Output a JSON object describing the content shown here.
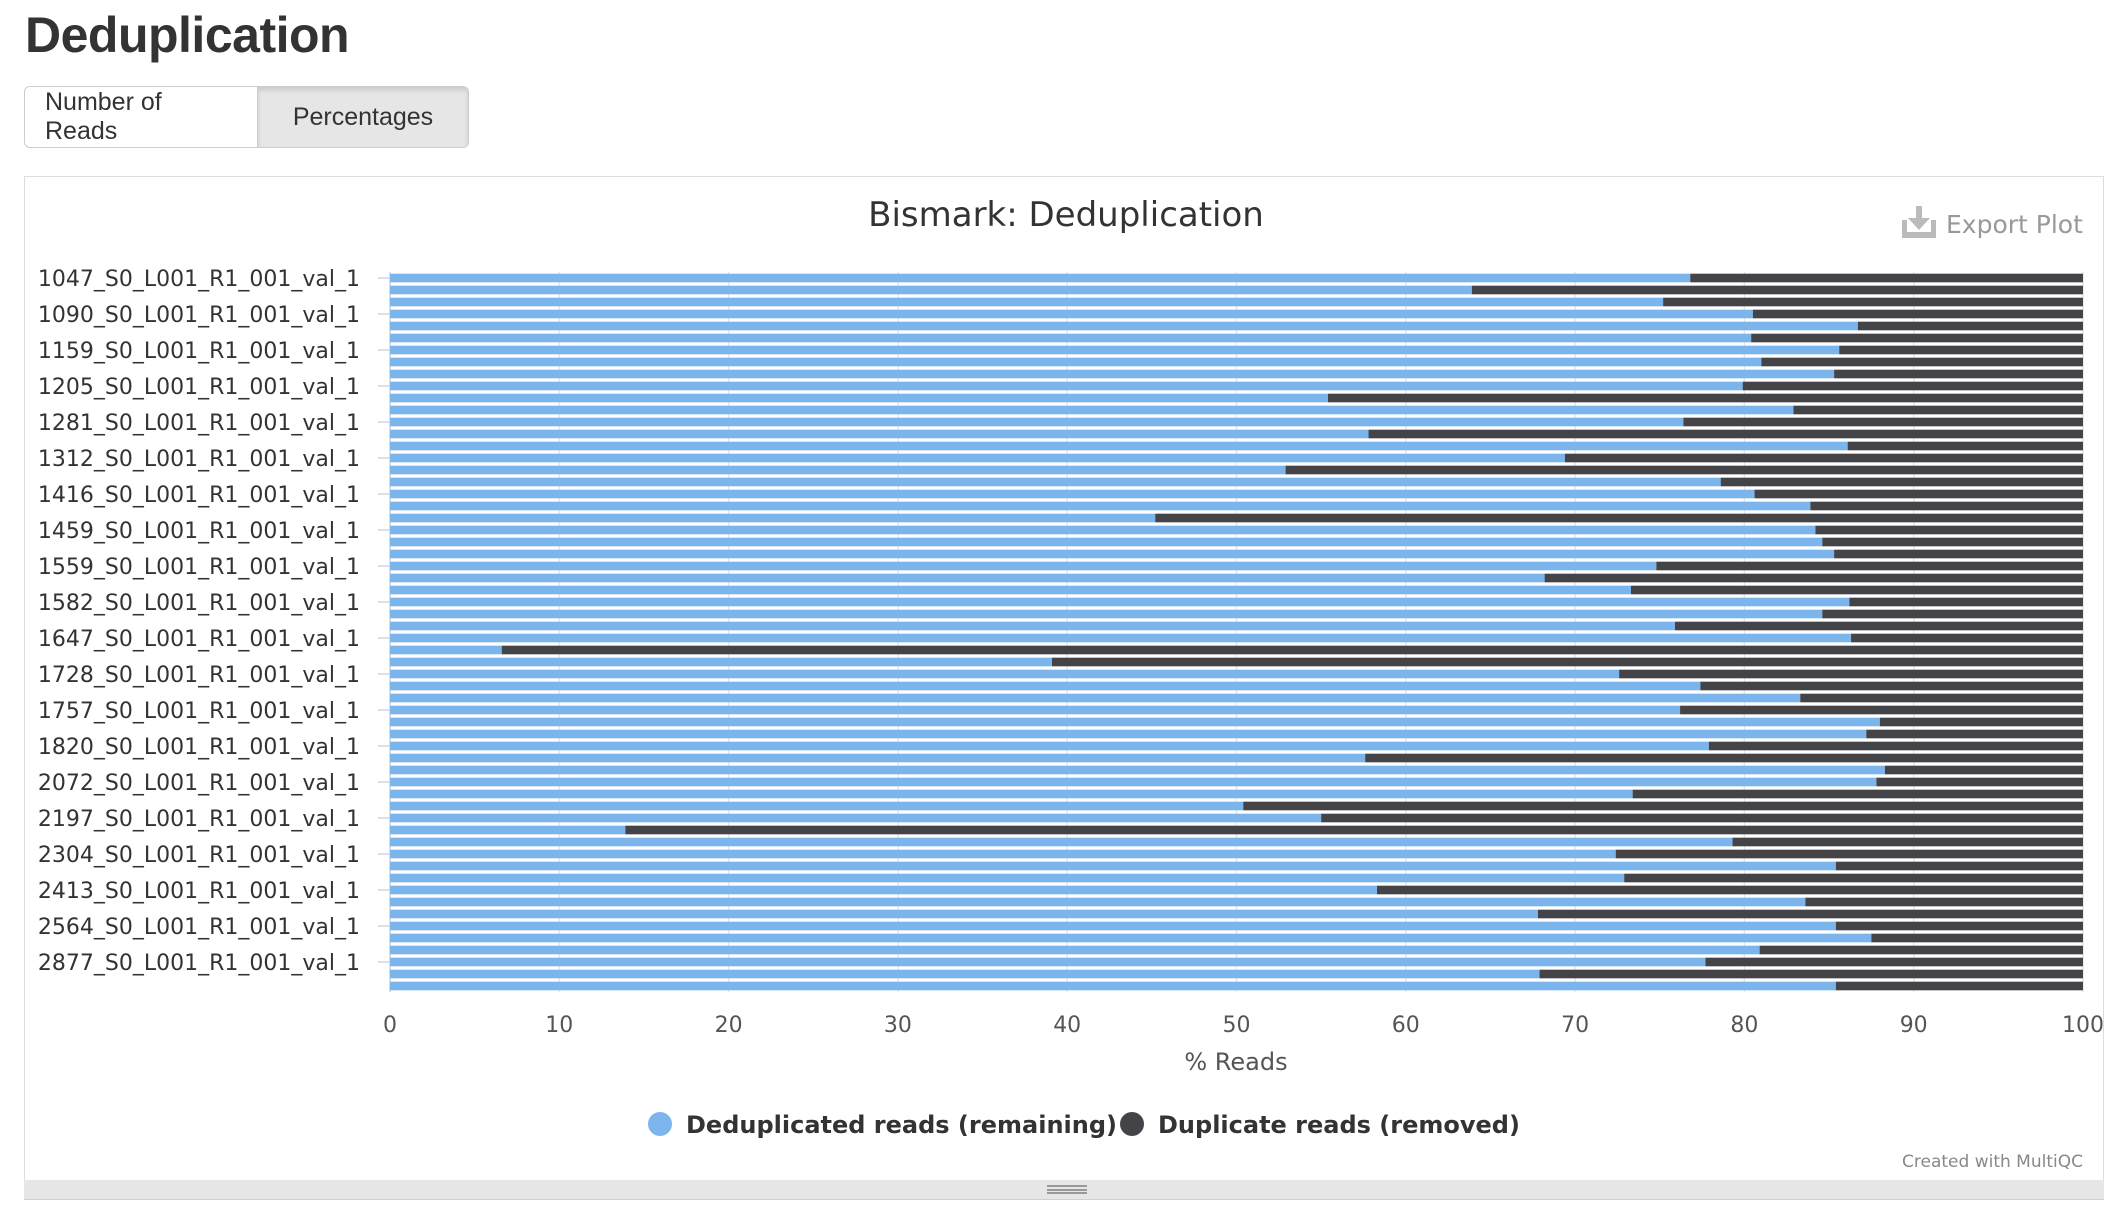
{
  "page": {
    "title": "Deduplication"
  },
  "toggle": {
    "reads_label": "Number of Reads",
    "percent_label": "Percentages"
  },
  "export": {
    "label": "Export Plot",
    "icon": "download-icon"
  },
  "credit": "Created with MultiQC",
  "chart_data": {
    "type": "bar",
    "orientation": "horizontal",
    "stacked": true,
    "title": "Bismark: Deduplication",
    "xlabel": "% Reads",
    "ylabel": "",
    "xlim": [
      0,
      100
    ],
    "xticks": [
      "0",
      "10",
      "20",
      "30",
      "40",
      "50",
      "60",
      "70",
      "80",
      "90",
      "100"
    ],
    "grid": true,
    "legend_position": "bottom-center",
    "categories": [
      "1047_S0_L001_R1_001_val_1",
      "",
      "",
      "1090_S0_L001_R1_001_val_1",
      "",
      "",
      "1159_S0_L001_R1_001_val_1",
      "",
      "",
      "1205_S0_L001_R1_001_val_1",
      "",
      "",
      "1281_S0_L001_R1_001_val_1",
      "",
      "",
      "1312_S0_L001_R1_001_val_1",
      "",
      "",
      "1416_S0_L001_R1_001_val_1",
      "",
      "",
      "1459_S0_L001_R1_001_val_1",
      "",
      "",
      "1559_S0_L001_R1_001_val_1",
      "",
      "",
      "1582_S0_L001_R1_001_val_1",
      "",
      "",
      "1647_S0_L001_R1_001_val_1",
      "",
      "",
      "1728_S0_L001_R1_001_val_1",
      "",
      "",
      "1757_S0_L001_R1_001_val_1",
      "",
      "",
      "1820_S0_L001_R1_001_val_1",
      "",
      "",
      "2072_S0_L001_R1_001_val_1",
      "",
      "",
      "2197_S0_L001_R1_001_val_1",
      "",
      "",
      "2304_S0_L001_R1_001_val_1",
      "",
      "",
      "2413_S0_L001_R1_001_val_1",
      "",
      "",
      "2564_S0_L001_R1_001_val_1",
      "",
      "",
      "2877_S0_L001_R1_001_val_1",
      "",
      ""
    ],
    "series": [
      {
        "name": "Deduplicated reads (remaining)",
        "color": "#7cb5ec",
        "values": [
          76.8,
          63.9,
          75.2,
          80.5,
          86.7,
          80.4,
          85.6,
          81.0,
          85.3,
          79.9,
          55.4,
          82.9,
          76.4,
          57.8,
          86.1,
          69.4,
          52.9,
          78.6,
          80.6,
          83.9,
          45.2,
          84.2,
          84.6,
          85.3,
          74.8,
          68.2,
          73.3,
          86.2,
          84.6,
          75.9,
          86.3,
          6.6,
          39.1,
          72.6,
          77.4,
          83.3,
          76.2,
          88.0,
          87.2,
          77.9,
          57.6,
          88.3,
          87.8,
          73.4,
          50.4,
          55.0,
          13.9,
          79.3,
          72.4,
          85.4,
          72.9,
          58.3,
          83.6,
          67.8,
          85.4,
          87.5,
          80.9,
          77.7,
          67.9,
          85.4
        ]
      },
      {
        "name": "Duplicate reads (removed)",
        "color": "#434348",
        "values": [
          23.2,
          36.1,
          24.8,
          19.5,
          13.3,
          19.6,
          14.4,
          19.0,
          14.7,
          20.1,
          44.6,
          17.1,
          23.6,
          42.2,
          13.9,
          30.6,
          47.1,
          21.4,
          19.4,
          16.1,
          54.8,
          15.8,
          15.4,
          14.7,
          25.2,
          31.8,
          26.7,
          13.8,
          15.4,
          24.1,
          13.7,
          93.4,
          60.9,
          27.4,
          22.6,
          16.7,
          23.8,
          12.0,
          12.8,
          22.1,
          42.4,
          11.7,
          12.2,
          26.6,
          49.6,
          45.0,
          86.1,
          20.7,
          27.6,
          14.6,
          27.1,
          41.7,
          16.4,
          32.2,
          14.6,
          12.5,
          19.1,
          22.3,
          32.1,
          14.6
        ]
      }
    ]
  }
}
